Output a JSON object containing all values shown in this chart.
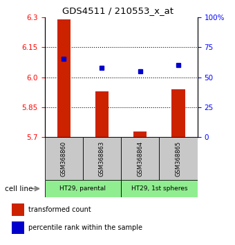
{
  "title": "GDS4511 / 210553_x_at",
  "samples": [
    "GSM368860",
    "GSM368863",
    "GSM368864",
    "GSM368865"
  ],
  "transformed_counts": [
    6.29,
    5.93,
    5.73,
    5.94
  ],
  "percentile_ranks": [
    65,
    58,
    55,
    60
  ],
  "ylim_left": [
    5.7,
    6.3
  ],
  "ylim_right": [
    0,
    100
  ],
  "yticks_left": [
    5.7,
    5.85,
    6.0,
    6.15,
    6.3
  ],
  "yticks_right": [
    0,
    25,
    50,
    75,
    100
  ],
  "ytick_labels_right": [
    "0",
    "25",
    "50",
    "75",
    "100%"
  ],
  "bar_color": "#cc2200",
  "dot_color": "#0000cc",
  "bar_width": 0.35,
  "sample_box_color": "#c8c8c8",
  "cell_line_box_color": "#90ee90",
  "grid_color": "black"
}
